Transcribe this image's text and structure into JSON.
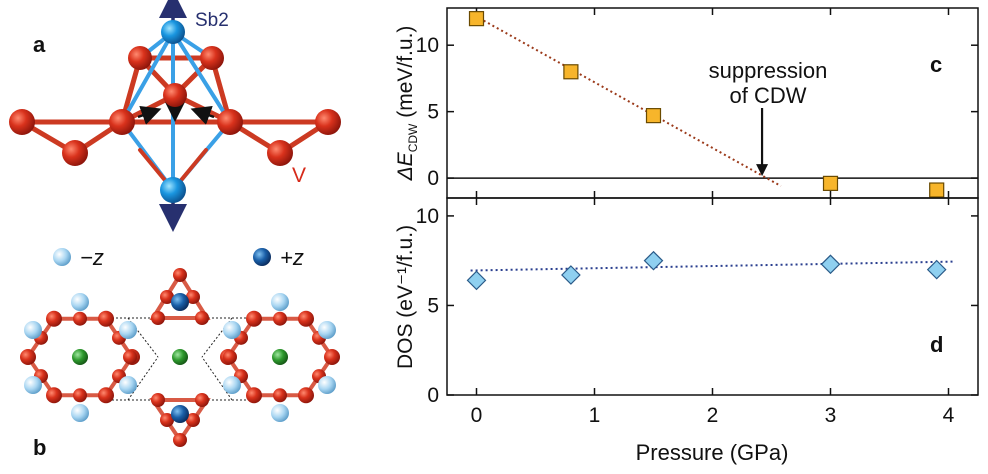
{
  "panels": {
    "a": "a",
    "b": "b",
    "c": "c",
    "d": "d"
  },
  "structure": {
    "sb2_label": "Sb2",
    "v_label": "V",
    "minus_z_label": "−z",
    "plus_z_label": "+z"
  },
  "annotation": {
    "line1": "suppression",
    "line2": "of CDW"
  },
  "colors": {
    "v_atom": "#cc2a1a",
    "sb_atom": "#1a8fd6",
    "arrow_dark": "#27306f",
    "marker_c": "#f7b52b",
    "marker_d": "#8fd0f0",
    "fit_c": "#9b3a1a",
    "fit_d": "#2a3f8f",
    "center_atom": "#2e9a2e"
  },
  "chart_data": [
    {
      "type": "scatter",
      "panel": "c",
      "xlabel": "Pressure (GPa)",
      "ylabel_prefix": "ΔE",
      "ylabel_sub": "CDW",
      "ylabel_suffix": " (meV/f.u.)",
      "xlim": [
        -0.25,
        4.25
      ],
      "ylim": [
        -1.5,
        12.8
      ],
      "xticks": [
        0,
        1,
        2,
        3,
        4
      ],
      "yticks": [
        0,
        5,
        10
      ],
      "reference_line": 0,
      "series": [
        {
          "marker": "square",
          "x": [
            0,
            0.8,
            1.5,
            3.0,
            3.9
          ],
          "y": [
            12.0,
            8.0,
            4.7,
            -0.4,
            -0.9
          ]
        }
      ],
      "fit": {
        "style": "dotted",
        "x": [
          -0.05,
          2.58
        ],
        "y": [
          12.4,
          -0.6
        ]
      },
      "arrow_x": 2.42
    },
    {
      "type": "scatter",
      "panel": "d",
      "xlabel": "Pressure (GPa)",
      "ylabel": "DOS (eV⁻¹/f.u.)",
      "xlim": [
        -0.25,
        4.25
      ],
      "ylim": [
        0,
        11
      ],
      "xticks": [
        0,
        1,
        2,
        3,
        4
      ],
      "yticks": [
        0,
        5,
        10
      ],
      "series": [
        {
          "marker": "diamond",
          "x": [
            0,
            0.8,
            1.5,
            3.0,
            3.9
          ],
          "y": [
            6.4,
            6.7,
            7.5,
            7.3,
            7.0
          ]
        }
      ],
      "fit": {
        "style": "dotted",
        "x": [
          -0.05,
          4.05
        ],
        "y": [
          6.95,
          7.45
        ]
      }
    }
  ]
}
